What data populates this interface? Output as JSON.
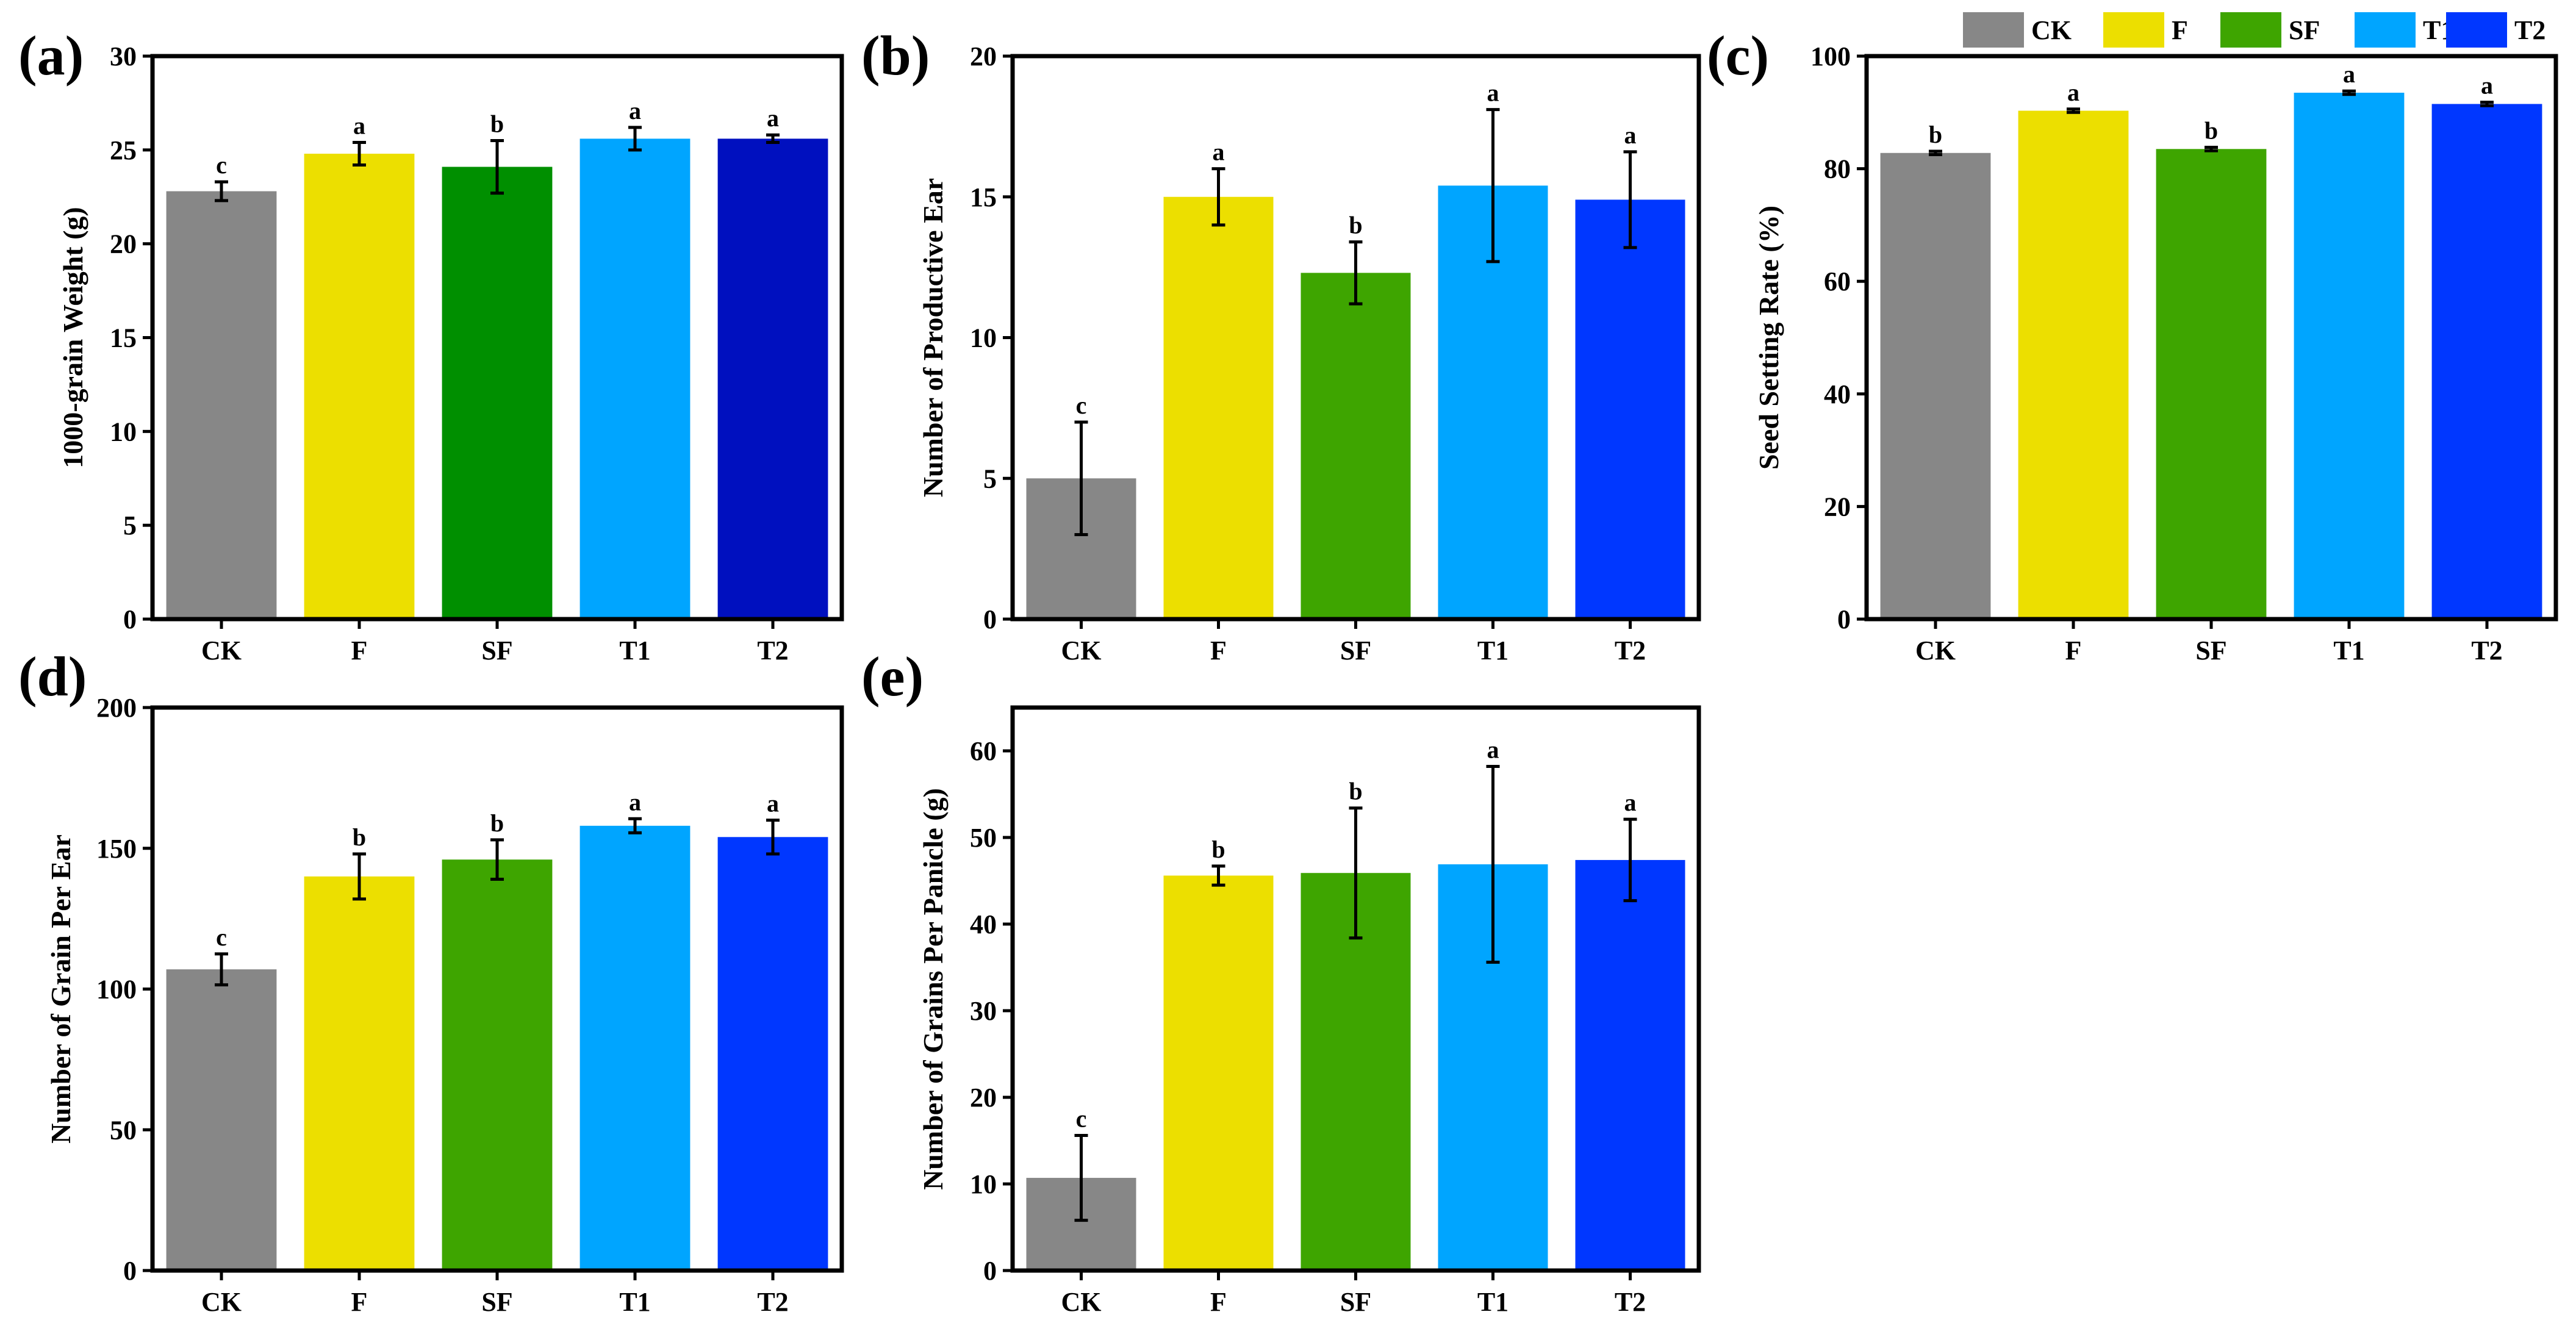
{
  "legend": {
    "items": [
      {
        "label": "CK",
        "color": "#878787"
      },
      {
        "label": "F",
        "color": "#ECDF00"
      },
      {
        "label": "SF",
        "color": "#3EA500"
      },
      {
        "label": "T1",
        "color": "#00A5FF"
      },
      {
        "label": "T2",
        "color": "#0037FF"
      }
    ]
  },
  "chart_data": [
    {
      "panel": "(a)",
      "type": "bar",
      "categories": [
        "CK",
        "F",
        "SF",
        "T1",
        "T2"
      ],
      "values": [
        22.8,
        24.8,
        24.1,
        25.6,
        25.6
      ],
      "errors": [
        0.5,
        0.6,
        1.4,
        0.6,
        0.2
      ],
      "significance": [
        "c",
        "a",
        "b",
        "a",
        "a"
      ],
      "colors": [
        "#878787",
        "#ECDF00",
        "#008F00",
        "#00A5FF",
        "#0010BF"
      ],
      "xlabel": "",
      "ylabel": "1000-grain Weight (g)",
      "ylim": [
        0,
        30
      ],
      "yticks": [
        0,
        5,
        10,
        15,
        20,
        25,
        30
      ]
    },
    {
      "panel": "(b)",
      "type": "bar",
      "categories": [
        "CK",
        "F",
        "SF",
        "T1",
        "T2"
      ],
      "values": [
        5.0,
        15.0,
        12.3,
        15.4,
        14.9
      ],
      "errors": [
        2.0,
        1.0,
        1.1,
        2.7,
        1.7
      ],
      "significance": [
        "c",
        "a",
        "b",
        "a",
        "a"
      ],
      "colors": [
        "#878787",
        "#ECDF00",
        "#3EA500",
        "#00A5FF",
        "#0037FF"
      ],
      "xlabel": "",
      "ylabel": "Number of Productive Ear",
      "ylim": [
        0,
        20
      ],
      "yticks": [
        0,
        5,
        10,
        15,
        20
      ]
    },
    {
      "panel": "(c)",
      "type": "bar",
      "categories": [
        "CK",
        "F",
        "SF",
        "T1",
        "T2"
      ],
      "values": [
        82.8,
        90.3,
        83.5,
        93.5,
        91.5
      ],
      "errors": [
        0.3,
        0.3,
        0.3,
        0.3,
        0.3
      ],
      "significance": [
        "b",
        "a",
        "b",
        "a",
        "a"
      ],
      "colors": [
        "#878787",
        "#ECDF00",
        "#3EA500",
        "#00A5FF",
        "#0037FF"
      ],
      "xlabel": "",
      "ylabel": "Seed Setting Rate (%)",
      "ylim": [
        0,
        100
      ],
      "yticks": [
        0,
        20,
        40,
        60,
        80,
        100
      ]
    },
    {
      "panel": "(d)",
      "type": "bar",
      "categories": [
        "CK",
        "F",
        "SF",
        "T1",
        "T2"
      ],
      "values": [
        107,
        140,
        146,
        158,
        154
      ],
      "errors": [
        5.5,
        8,
        7,
        2.5,
        6
      ],
      "significance": [
        "c",
        "b",
        "b",
        "a",
        "a"
      ],
      "colors": [
        "#878787",
        "#ECDF00",
        "#3EA500",
        "#00A5FF",
        "#0037FF"
      ],
      "xlabel": "",
      "ylabel": "Number of Grain Per Ear",
      "ylim": [
        0,
        200
      ],
      "yticks": [
        0,
        50,
        100,
        150,
        200
      ]
    },
    {
      "panel": "(e)",
      "type": "bar",
      "categories": [
        "CK",
        "F",
        "SF",
        "T1",
        "T2"
      ],
      "values": [
        10.7,
        45.6,
        45.9,
        46.9,
        47.4
      ],
      "errors": [
        4.9,
        1.1,
        7.5,
        11.3,
        4.7
      ],
      "significance": [
        "c",
        "b",
        "b",
        "a",
        "a"
      ],
      "colors": [
        "#878787",
        "#ECDF00",
        "#3EA500",
        "#00A5FF",
        "#0037FF"
      ],
      "xlabel": "",
      "ylabel": "Number of Grains Per Panicle (g)",
      "ylim": [
        0,
        65
      ],
      "yticks": [
        0,
        10,
        20,
        30,
        40,
        50,
        60
      ]
    }
  ]
}
